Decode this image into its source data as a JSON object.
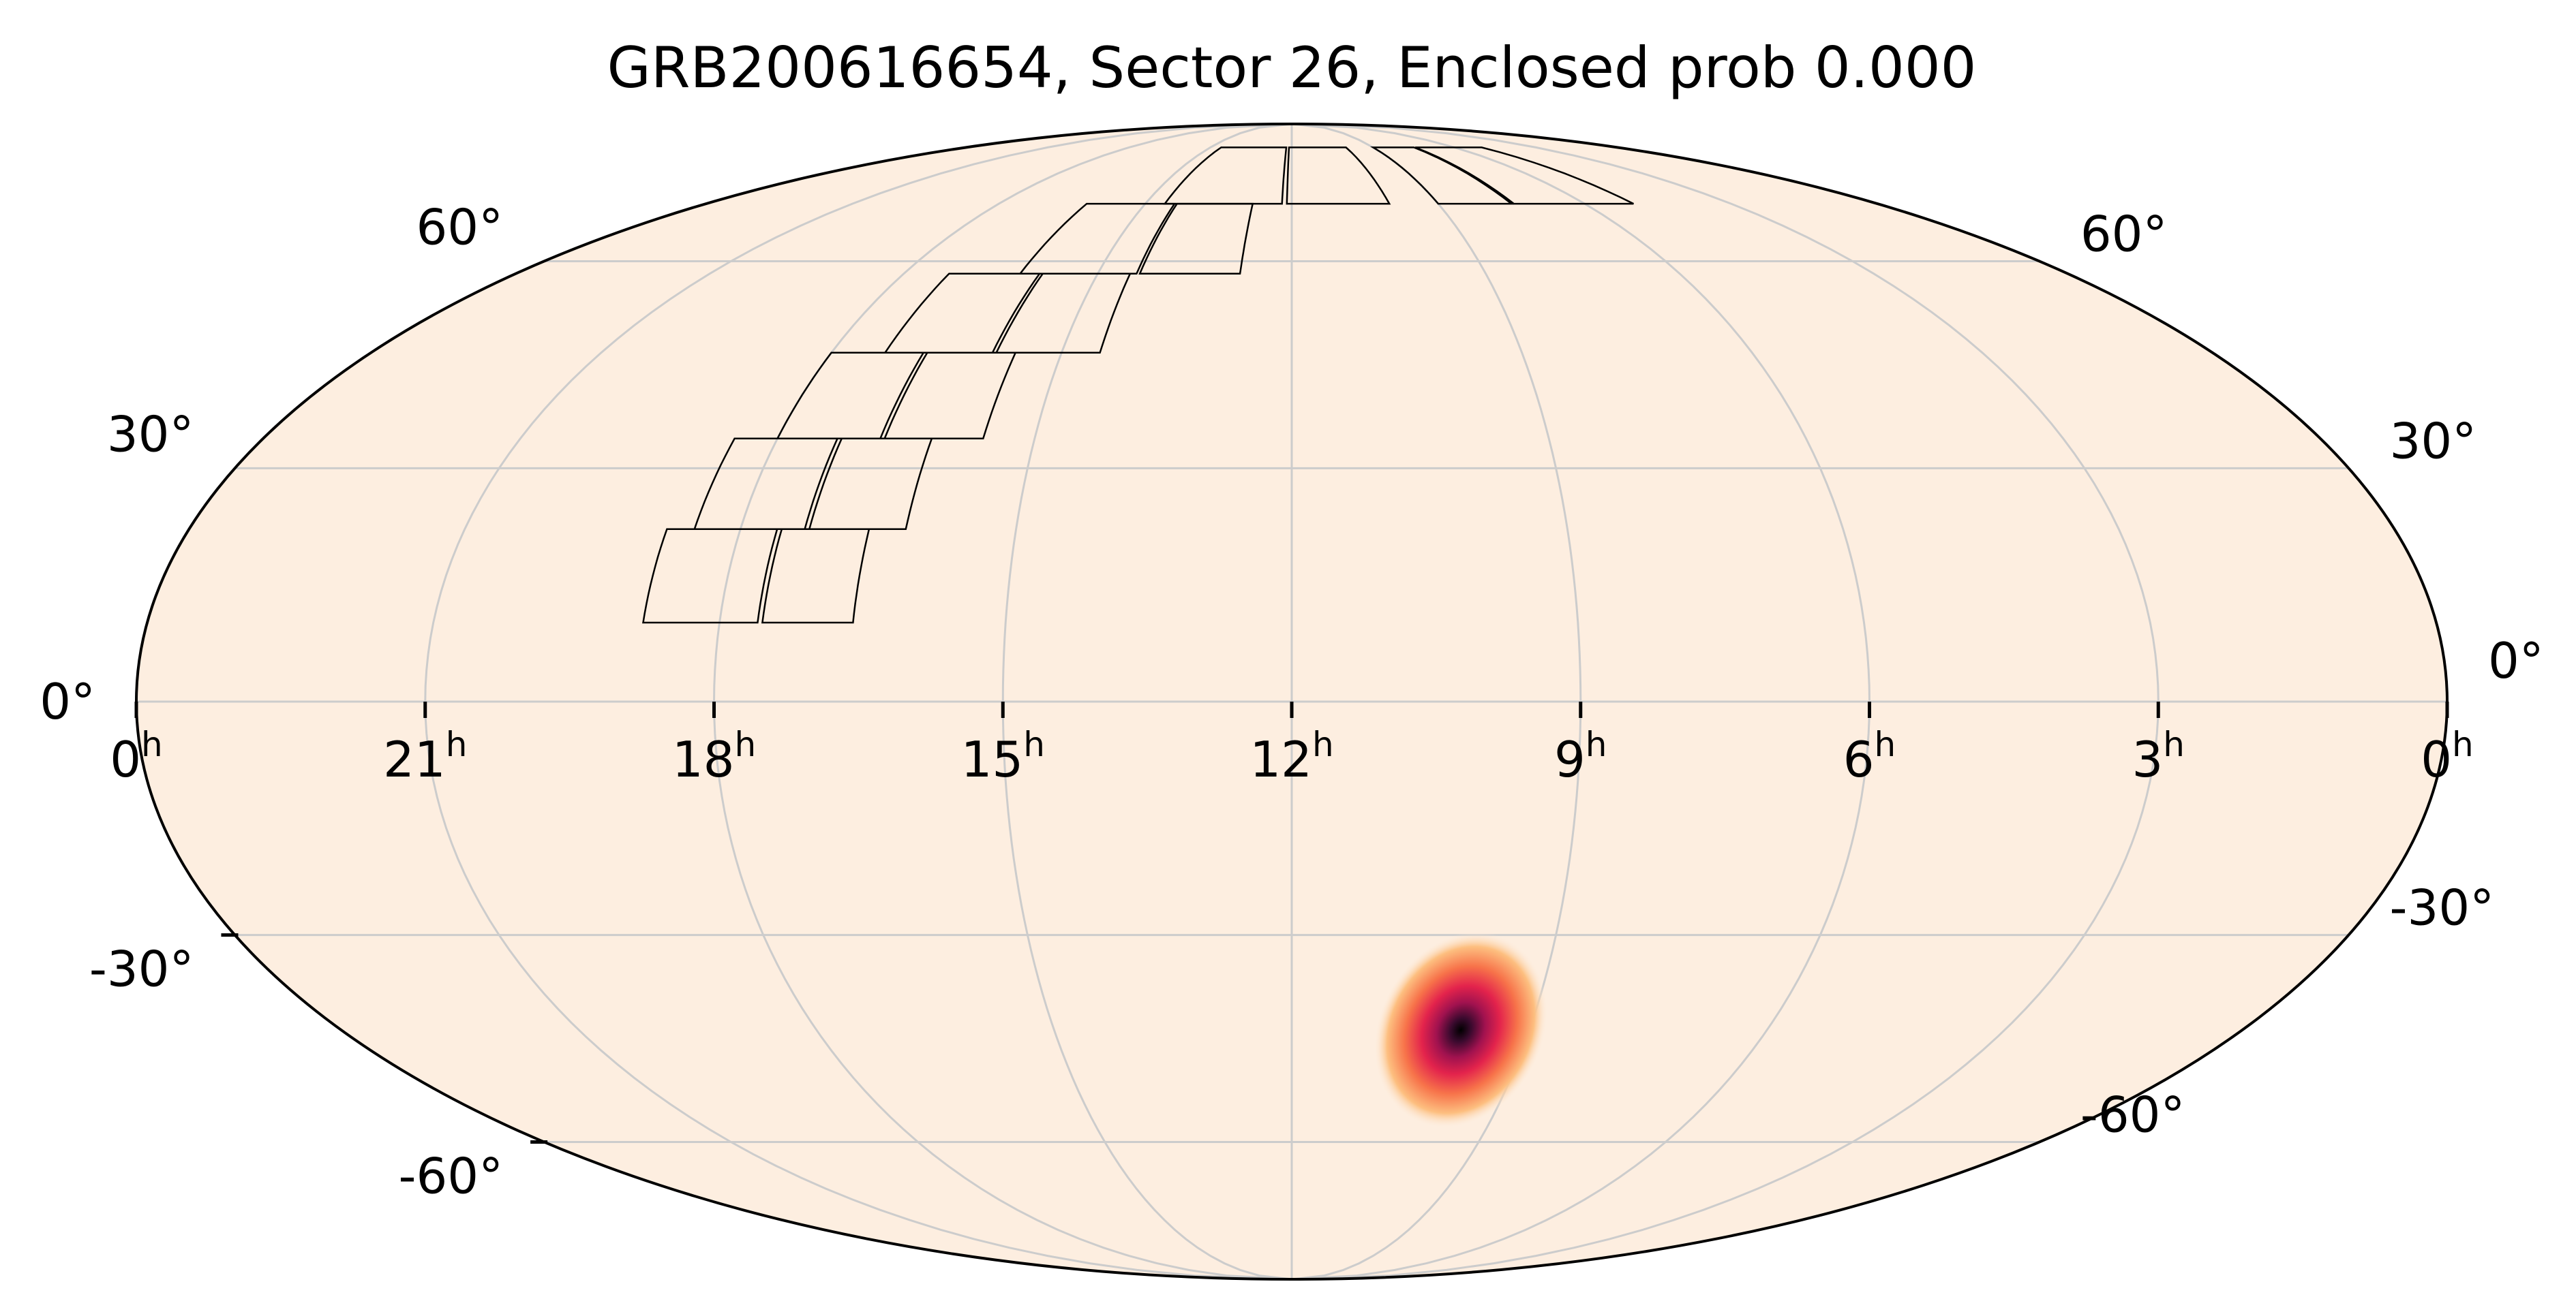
{
  "title": "GRB200616654, Sector 26, Enclosed prob 0.000",
  "projection": "mollweide",
  "background_color": "#fdeee0",
  "grid_color": "#cccccc",
  "axes": {
    "ra_ticks": [
      {
        "label": "0",
        "sup": "h",
        "value_hours": 24
      },
      {
        "label": "21",
        "sup": "h",
        "value_hours": 21
      },
      {
        "label": "18",
        "sup": "h",
        "value_hours": 18
      },
      {
        "label": "15",
        "sup": "h",
        "value_hours": 15
      },
      {
        "label": "12",
        "sup": "h",
        "value_hours": 12
      },
      {
        "label": "9",
        "sup": "h",
        "value_hours": 9
      },
      {
        "label": "6",
        "sup": "h",
        "value_hours": 6
      },
      {
        "label": "3",
        "sup": "h",
        "value_hours": 3
      },
      {
        "label": "0",
        "sup": "h",
        "value_hours": 0
      }
    ],
    "dec_ticks_left": [
      "60°",
      "30°",
      "0°",
      "-30°",
      "-60°"
    ],
    "dec_ticks_right": [
      "60°",
      "30°",
      "0°",
      "-30°",
      "-60°"
    ],
    "dec_values": [
      60,
      30,
      0,
      -30,
      -60
    ],
    "ra_increases": "right-to-left"
  },
  "probability_blob": {
    "peak_ra_hours": 10.5,
    "peak_dec_deg": -46,
    "colormap": [
      "#fdeee0",
      "#fdbf80",
      "#f7734a",
      "#e3234c",
      "#a1124f",
      "#3a0a2e",
      "#000000"
    ]
  },
  "tess_footprint": {
    "description_visible": false,
    "camera_columns": [
      {
        "ra_hours_start": 19.2,
        "ra_hours_end": 17.0
      },
      {
        "ra_hours_start": 17.0,
        "ra_hours_end": 14.8
      }
    ]
  }
}
